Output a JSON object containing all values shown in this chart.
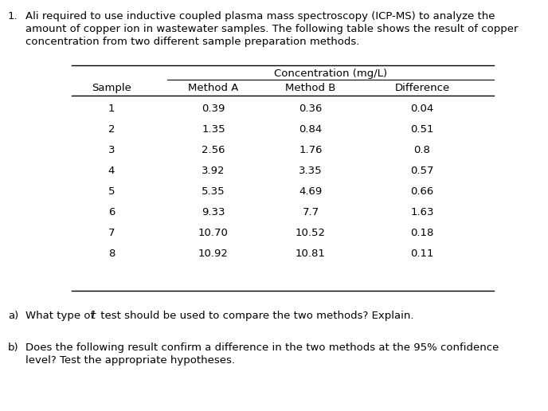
{
  "background_color": "#ffffff",
  "text_color": "#000000",
  "question_number": "1.",
  "q_line1": "Ali required to use inductive coupled plasma mass spectroscopy (ICP-MS) to analyze the",
  "q_line2": "amount of copper ion in wastewater samples. The following table shows the result of copper",
  "q_line3": "concentration from two different sample preparation methods.",
  "table_header_top": "Concentration (mg/L)",
  "col_headers": [
    "Sample",
    "Method A",
    "Method B",
    "Difference"
  ],
  "rows": [
    [
      "1",
      "0.39",
      "0.36",
      "0.04"
    ],
    [
      "2",
      "1.35",
      "0.84",
      "0.51"
    ],
    [
      "3",
      "2.56",
      "1.76",
      "0.8"
    ],
    [
      "4",
      "3.92",
      "3.35",
      "0.57"
    ],
    [
      "5",
      "5.35",
      "4.69",
      "0.66"
    ],
    [
      "6",
      "9.33",
      "7.7",
      "1.63"
    ],
    [
      "7",
      "10.70",
      "10.52",
      "0.18"
    ],
    [
      "8",
      "10.92",
      "10.81",
      "0.11"
    ]
  ],
  "part_a_prefix": "a)",
  "part_a_text": "  What type of ",
  "part_a_italic": "t",
  "part_a_suffix": " test should be used to compare the two methods? Explain.",
  "part_b_prefix": "b)",
  "part_b_line1": "  Does the following result confirm a difference in the two methods at the 95% confidence",
  "part_b_line2": "  level? Test the appropriate hypotheses.",
  "font_family": "DejaVu Sans",
  "font_size": 9.5,
  "font_size_small": 9.5
}
